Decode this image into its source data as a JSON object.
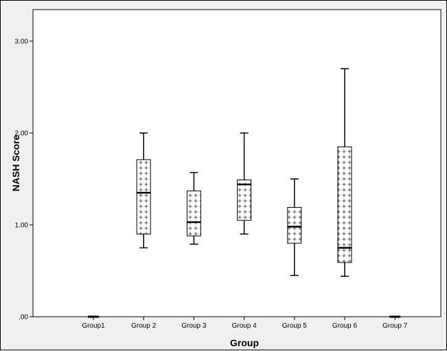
{
  "chart_data": {
    "type": "boxplot",
    "title": "",
    "xlabel": "Group",
    "ylabel": "NASH Score",
    "ylim": [
      0,
      3.3
    ],
    "yticks": [
      0,
      1,
      2,
      3
    ],
    "ytick_labels": [
      ".00",
      "1.00",
      "2.00",
      "3.00"
    ],
    "grid": false,
    "categories": [
      "Group1",
      "Group 2",
      "Group 3",
      "Group 4",
      "Group 5",
      "Group 6",
      "Group 7"
    ],
    "boxes": [
      {
        "category": "Group1",
        "min": 0,
        "q1": 0,
        "median": 0,
        "q3": 0,
        "max": 0
      },
      {
        "category": "Group 2",
        "min": 0.75,
        "q1": 0.9,
        "median": 1.35,
        "q3": 1.71,
        "max": 2.0
      },
      {
        "category": "Group 3",
        "min": 0.79,
        "q1": 0.88,
        "median": 1.03,
        "q3": 1.37,
        "max": 1.57
      },
      {
        "category": "Group 4",
        "min": 0.9,
        "q1": 1.05,
        "median": 1.44,
        "q3": 1.49,
        "max": 2.0
      },
      {
        "category": "Group 5",
        "min": 0.45,
        "q1": 0.8,
        "median": 0.98,
        "q3": 1.19,
        "max": 1.5
      },
      {
        "category": "Group 6",
        "min": 0.44,
        "q1": 0.59,
        "median": 0.75,
        "q3": 1.85,
        "max": 2.7
      },
      {
        "category": "Group 7",
        "min": 0,
        "q1": 0,
        "median": 0,
        "q3": 0,
        "max": 0
      }
    ],
    "colors": {
      "frame_bg": "#f0f0f0",
      "plot_bg": "#ffffff",
      "line": "#000000"
    }
  }
}
